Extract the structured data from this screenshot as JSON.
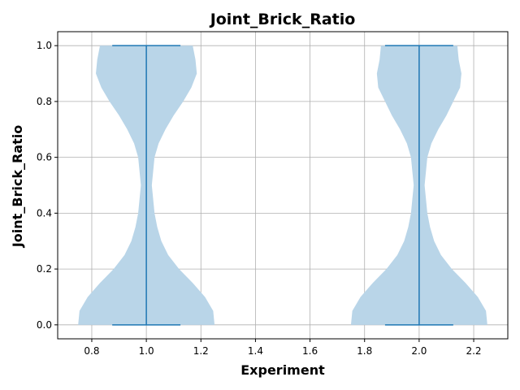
{
  "chart_data": {
    "type": "violin",
    "title": "Joint_Brick_Ratio",
    "xlabel": "Experiment",
    "ylabel": "Joint_Brick_Ratio",
    "xlim": [
      0.675,
      2.325
    ],
    "ylim": [
      -0.05,
      1.05
    ],
    "xticks": [
      0.8,
      1.0,
      1.2,
      1.4,
      1.6,
      1.8,
      2.0,
      2.2
    ],
    "xtick_labels": [
      "0.8",
      "1.0",
      "1.2",
      "1.4",
      "1.6",
      "1.8",
      "2.0",
      "2.2"
    ],
    "yticks": [
      0.0,
      0.2,
      0.4,
      0.6,
      0.8,
      1.0
    ],
    "ytick_labels": [
      "0.0",
      "0.2",
      "0.4",
      "0.6",
      "0.8",
      "1.0"
    ],
    "grid": true,
    "fill_color": "#b9d5e8",
    "line_color": "#1f77b4",
    "violins": [
      {
        "position": 1.0,
        "min": 0.0,
        "max": 1.0,
        "density_y": [
          0.0,
          0.05,
          0.1,
          0.15,
          0.2,
          0.25,
          0.3,
          0.35,
          0.4,
          0.45,
          0.5,
          0.55,
          0.6,
          0.65,
          0.7,
          0.75,
          0.8,
          0.85,
          0.9,
          0.95,
          1.0
        ],
        "density_halfwidth": [
          0.25,
          0.245,
          0.215,
          0.17,
          0.12,
          0.08,
          0.055,
          0.04,
          0.03,
          0.025,
          0.02,
          0.025,
          0.03,
          0.045,
          0.07,
          0.1,
          0.135,
          0.165,
          0.185,
          0.18,
          0.17
        ]
      },
      {
        "position": 2.0,
        "min": 0.0,
        "max": 1.0,
        "density_y": [
          0.0,
          0.05,
          0.1,
          0.15,
          0.2,
          0.25,
          0.3,
          0.35,
          0.4,
          0.45,
          0.5,
          0.55,
          0.6,
          0.65,
          0.7,
          0.75,
          0.8,
          0.85,
          0.9,
          0.95,
          1.0
        ],
        "density_halfwidth": [
          0.25,
          0.245,
          0.215,
          0.17,
          0.12,
          0.08,
          0.055,
          0.04,
          0.03,
          0.025,
          0.02,
          0.025,
          0.03,
          0.045,
          0.07,
          0.1,
          0.125,
          0.15,
          0.155,
          0.145,
          0.14
        ]
      }
    ]
  }
}
